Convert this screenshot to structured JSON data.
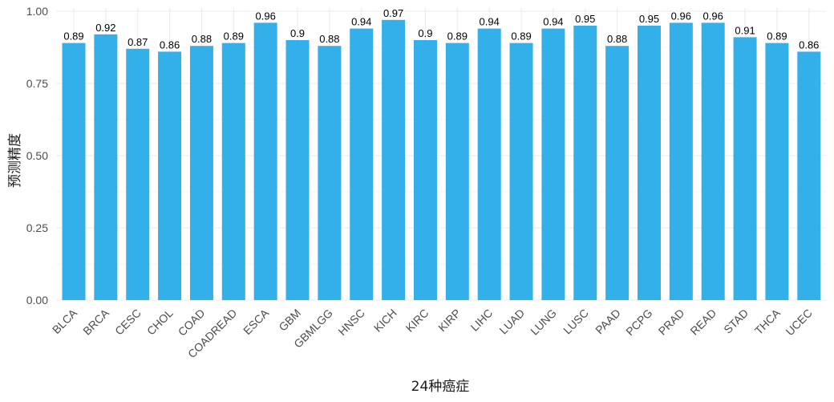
{
  "chart_data": {
    "type": "bar",
    "title": "",
    "xlabel": "24种癌症",
    "ylabel": "预测精度",
    "ylim": [
      0,
      1
    ],
    "yticks": [
      "0.00",
      "0.25",
      "0.50",
      "0.75",
      "1.00"
    ],
    "ytick_values": [
      0,
      0.25,
      0.5,
      0.75,
      1.0
    ],
    "grid": true,
    "legend": "none",
    "bar_color": "#33b0ea",
    "categories": [
      "BLCA",
      "BRCA",
      "CESC",
      "CHOL",
      "COAD",
      "COADREAD",
      "ESCA",
      "GBM",
      "GBMLGG",
      "HNSC",
      "KICH",
      "KIRC",
      "KIRP",
      "LIHC",
      "LUAD",
      "LUNG",
      "LUSC",
      "PAAD",
      "PCPG",
      "PRAD",
      "READ",
      "STAD",
      "THCA",
      "UCEC"
    ],
    "values": [
      0.89,
      0.92,
      0.87,
      0.86,
      0.88,
      0.89,
      0.96,
      0.9,
      0.88,
      0.94,
      0.97,
      0.9,
      0.89,
      0.94,
      0.89,
      0.94,
      0.95,
      0.88,
      0.95,
      0.96,
      0.96,
      0.91,
      0.89,
      0.86
    ],
    "labels": [
      "0.89",
      "0.92",
      "0.87",
      "0.86",
      "0.88",
      "0.89",
      "0.96",
      "0.9",
      "0.88",
      "0.94",
      "0.97",
      "0.9",
      "0.89",
      "0.94",
      "0.89",
      "0.94",
      "0.95",
      "0.88",
      "0.95",
      "0.96",
      "0.96",
      "0.91",
      "0.89",
      "0.86"
    ]
  }
}
